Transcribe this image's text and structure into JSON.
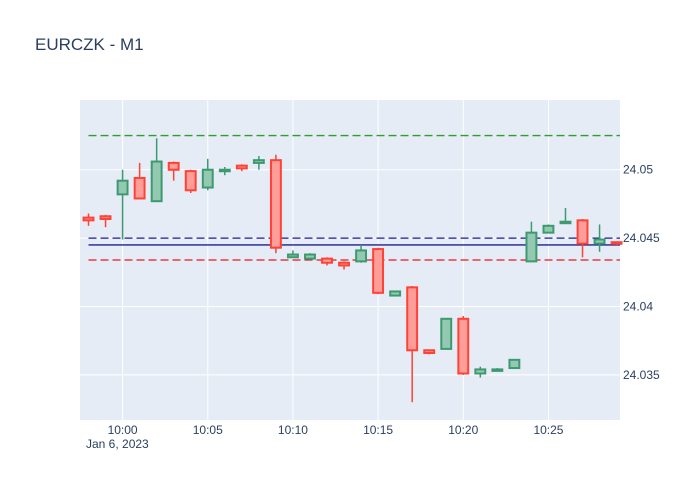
{
  "chart_data": {
    "type": "candlestick",
    "title": "EURCZK - M1",
    "xlabel": "",
    "ylabel": "",
    "date_label": "Jan 6, 2023",
    "x_tick_labels": [
      "10:00",
      "10:05",
      "10:10",
      "10:15",
      "10:20",
      "10:25"
    ],
    "x_tick_minutes": [
      0,
      5,
      10,
      15,
      20,
      25
    ],
    "y_tick_labels": [
      "24.035",
      "24.04",
      "24.045",
      "24.05"
    ],
    "y_tick_values": [
      24.035,
      24.04,
      24.045,
      24.05
    ],
    "xlim": [
      -2.5,
      29.2
    ],
    "ylim": [
      24.0317,
      24.0551
    ],
    "y_axis_side": "right",
    "grid": true,
    "colors": {
      "increasing": "#3d9970",
      "increasing_fill": "#94c9b1",
      "decreasing": "#ff4136",
      "decreasing_fill": "#ff9e98",
      "background": "#e5ecf6",
      "grid": "#ffffff",
      "text": "#2a3f5f"
    },
    "reference_lines": [
      {
        "value": 24.0525,
        "color": "#2ca02c",
        "dash": true
      },
      {
        "value": 24.045,
        "color": "#1f1f8f",
        "dash": true
      },
      {
        "value": 24.0445,
        "color": "#1f1f8f",
        "dash": false
      },
      {
        "value": 24.0434,
        "color": "#e41a1c",
        "dash": true
      }
    ],
    "candles": [
      {
        "minute": -2,
        "open": 24.0465,
        "high": 24.0468,
        "low": 24.0459,
        "close": 24.0463
      },
      {
        "minute": -1,
        "open": 24.0466,
        "high": 24.0467,
        "low": 24.0458,
        "close": 24.0464
      },
      {
        "minute": 0,
        "open": 24.0482,
        "high": 24.05,
        "low": 24.0449,
        "close": 24.0492
      },
      {
        "minute": 1,
        "open": 24.0494,
        "high": 24.0505,
        "low": 24.0479,
        "close": 24.0479
      },
      {
        "minute": 2,
        "open": 24.0477,
        "high": 24.0523,
        "low": 24.0477,
        "close": 24.0506
      },
      {
        "minute": 3,
        "open": 24.0505,
        "high": 24.0506,
        "low": 24.0492,
        "close": 24.05
      },
      {
        "minute": 4,
        "open": 24.0499,
        "high": 24.05,
        "low": 24.0483,
        "close": 24.0485
      },
      {
        "minute": 5,
        "open": 24.0487,
        "high": 24.0508,
        "low": 24.0485,
        "close": 24.05
      },
      {
        "minute": 6,
        "open": 24.05,
        "high": 24.0502,
        "low": 24.0496,
        "close": 24.05
      },
      {
        "minute": 7,
        "open": 24.0503,
        "high": 24.0504,
        "low": 24.0499,
        "close": 24.0501
      },
      {
        "minute": 8,
        "open": 24.0505,
        "high": 24.051,
        "low": 24.05,
        "close": 24.0507
      },
      {
        "minute": 9,
        "open": 24.0507,
        "high": 24.0511,
        "low": 24.0439,
        "close": 24.0443
      },
      {
        "minute": 10,
        "open": 24.0436,
        "high": 24.0441,
        "low": 24.0436,
        "close": 24.0438
      },
      {
        "minute": 11,
        "open": 24.0435,
        "high": 24.0439,
        "low": 24.0434,
        "close": 24.0438
      },
      {
        "minute": 12,
        "open": 24.0435,
        "high": 24.0436,
        "low": 24.043,
        "close": 24.0432
      },
      {
        "minute": 13,
        "open": 24.0432,
        "high": 24.0433,
        "low": 24.0427,
        "close": 24.043
      },
      {
        "minute": 14,
        "open": 24.0433,
        "high": 24.0445,
        "low": 24.0432,
        "close": 24.0441
      },
      {
        "minute": 15,
        "open": 24.0442,
        "high": 24.0443,
        "low": 24.0409,
        "close": 24.041
      },
      {
        "minute": 16,
        "open": 24.0408,
        "high": 24.0411,
        "low": 24.0408,
        "close": 24.0411
      },
      {
        "minute": 17,
        "open": 24.0414,
        "high": 24.0415,
        "low": 24.033,
        "close": 24.0368
      },
      {
        "minute": 18,
        "open": 24.0368,
        "high": 24.0368,
        "low": 24.0365,
        "close": 24.0366
      },
      {
        "minute": 19,
        "open": 24.0369,
        "high": 24.0391,
        "low": 24.0369,
        "close": 24.0391
      },
      {
        "minute": 20,
        "open": 24.0391,
        "high": 24.0393,
        "low": 24.035,
        "close": 24.0351
      },
      {
        "minute": 21,
        "open": 24.0351,
        "high": 24.0356,
        "low": 24.0348,
        "close": 24.0354
      },
      {
        "minute": 22,
        "open": 24.0353,
        "high": 24.0355,
        "low": 24.0353,
        "close": 24.0354
      },
      {
        "minute": 23,
        "open": 24.0355,
        "high": 24.0361,
        "low": 24.0355,
        "close": 24.0361
      },
      {
        "minute": 24,
        "open": 24.0433,
        "high": 24.0462,
        "low": 24.0433,
        "close": 24.0454
      },
      {
        "minute": 25,
        "open": 24.0454,
        "high": 24.046,
        "low": 24.0454,
        "close": 24.0459
      },
      {
        "minute": 26,
        "open": 24.0461,
        "high": 24.0472,
        "low": 24.0461,
        "close": 24.0462
      },
      {
        "minute": 27,
        "open": 24.0463,
        "high": 24.0464,
        "low": 24.0436,
        "close": 24.0446
      },
      {
        "minute": 28,
        "open": 24.0446,
        "high": 24.046,
        "low": 24.044,
        "close": 24.0449
      },
      {
        "minute": 29,
        "open": 24.0447,
        "high": 24.0447,
        "low": 24.0445,
        "close": 24.0446
      }
    ]
  }
}
